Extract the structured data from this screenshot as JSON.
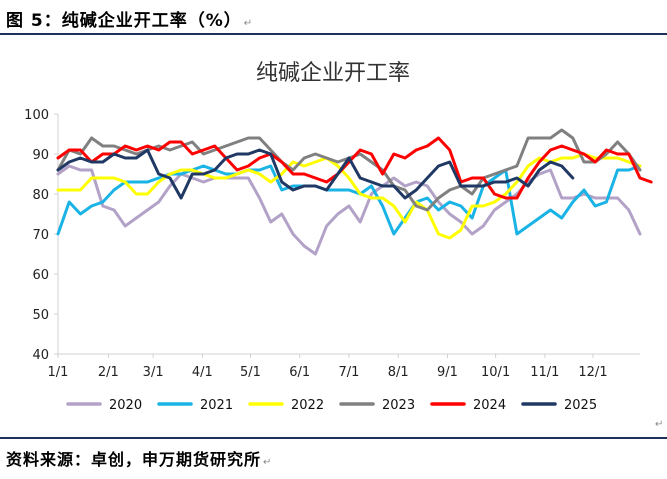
{
  "caption": "图 5：纯碱企业开工率（%）",
  "caption_mark": "↵",
  "source": "资料来源：卓创，申万期货研究所",
  "source_mark": "↵",
  "side_mark": "↵",
  "chart_data": {
    "type": "line",
    "title": "纯碱企业开工率",
    "xlabel": "",
    "ylabel": "",
    "ylim": [
      40,
      100
    ],
    "yticks": [
      40,
      50,
      60,
      70,
      80,
      90,
      100
    ],
    "x_tick_labels": [
      "1/1",
      "2/1",
      "3/1",
      "4/1",
      "5/1",
      "6/1",
      "7/1",
      "8/1",
      "9/1",
      "10/1",
      "11/1",
      "12/1"
    ],
    "x_unit": "week of year",
    "x_tick_positions": [
      0,
      4.5,
      8.5,
      12.9,
      17.2,
      21.6,
      26.0,
      30.4,
      34.8,
      39.1,
      43.5,
      47.8
    ],
    "x_range": [
      0,
      52
    ],
    "grid": false,
    "legend_position": "bottom",
    "series": [
      {
        "name": "2020",
        "color": "#b3a2c7",
        "values": [
          85,
          87,
          86,
          86,
          77,
          76,
          72,
          74,
          76,
          78,
          82,
          85,
          84,
          83,
          84,
          84,
          84,
          84,
          79,
          73,
          75,
          70,
          67,
          65,
          72,
          75,
          77,
          73,
          80,
          82,
          84,
          82,
          83,
          82,
          78,
          75,
          73,
          70,
          72,
          76,
          78,
          80,
          83,
          85,
          86,
          79,
          79,
          80,
          79,
          79,
          79,
          76,
          70
        ]
      },
      {
        "name": "2021",
        "color": "#1ab3e6",
        "values": [
          70,
          78,
          75,
          77,
          78,
          81,
          83,
          83,
          83,
          84,
          85,
          85,
          86,
          87,
          86,
          85,
          85,
          86,
          86,
          87,
          81,
          82,
          82,
          82,
          81,
          81,
          81,
          80,
          82,
          77,
          70,
          74,
          78,
          79,
          76,
          78,
          77,
          74,
          82,
          84,
          86,
          70,
          72,
          74,
          76,
          74,
          78,
          81,
          77,
          78,
          86,
          86,
          87
        ]
      },
      {
        "name": "2022",
        "color": "#ffff00",
        "values": [
          81,
          81,
          81,
          84,
          84,
          84,
          83,
          80,
          80,
          83,
          85,
          86,
          86,
          85,
          84,
          84,
          85,
          86,
          85,
          83,
          85,
          88,
          87,
          88,
          89,
          87,
          84,
          80,
          79,
          79,
          77,
          73,
          78,
          76,
          70,
          69,
          71,
          77,
          77,
          78,
          80,
          83,
          87,
          89,
          88,
          89,
          89,
          90,
          89,
          89,
          89,
          88,
          87
        ]
      },
      {
        "name": "2023",
        "color": "#808080",
        "values": [
          86,
          91,
          90,
          94,
          92,
          92,
          91,
          90,
          91,
          92,
          91,
          92,
          93,
          90,
          91,
          92,
          93,
          94,
          94,
          91,
          88,
          86,
          89,
          90,
          89,
          88,
          89,
          90,
          88,
          86,
          82,
          81,
          77,
          76,
          79,
          81,
          82,
          80,
          84,
          85,
          86,
          87,
          94,
          94,
          94,
          96,
          94,
          88,
          88,
          90,
          93,
          90,
          86
        ]
      },
      {
        "name": "2024",
        "color": "#ff0000",
        "values": [
          89,
          91,
          91,
          88,
          90,
          90,
          92,
          91,
          92,
          91,
          93,
          93,
          90,
          91,
          92,
          89,
          86,
          87,
          89,
          90,
          88,
          85,
          85,
          84,
          83,
          85,
          88,
          91,
          90,
          85,
          90,
          89,
          91,
          92,
          94,
          91,
          83,
          84,
          84,
          80,
          79,
          79,
          84,
          88,
          91,
          92,
          91,
          90,
          88,
          91,
          90,
          90,
          84,
          83
        ]
      },
      {
        "name": "2025",
        "color": "#1f3864",
        "values": [
          86,
          88,
          89,
          88,
          88,
          90,
          89,
          89,
          91,
          85,
          84,
          79,
          85,
          85,
          86,
          89,
          90,
          90,
          91,
          90,
          83,
          81,
          82,
          82,
          81,
          85,
          89,
          84,
          83,
          82,
          82,
          79,
          81,
          84,
          87,
          88,
          82,
          82,
          82,
          83,
          83,
          84,
          82,
          86,
          88,
          87,
          84
        ]
      }
    ]
  }
}
